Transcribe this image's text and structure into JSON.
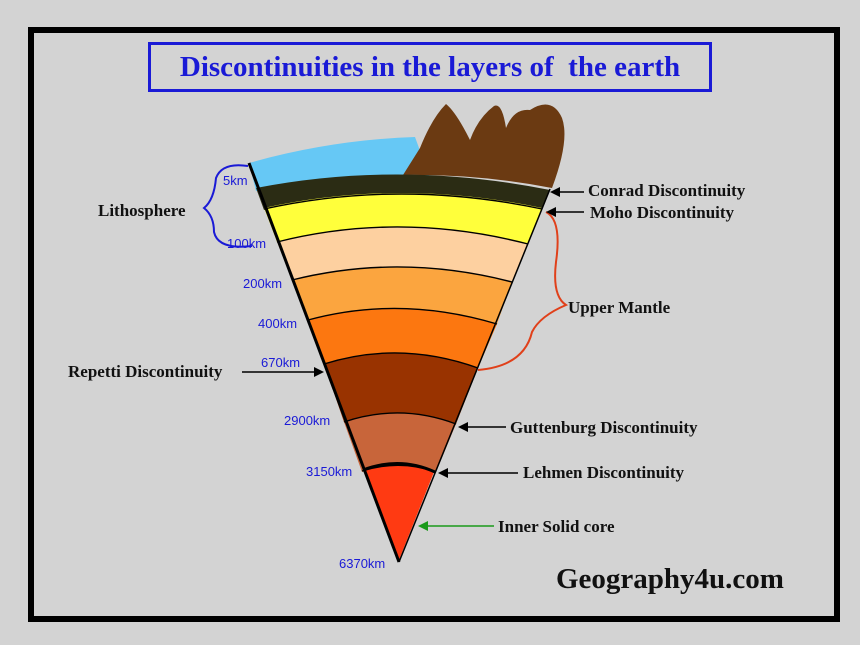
{
  "title": "Discontinuities in the layers of  the earth",
  "labels": {
    "lithosphere": "Lithosphere",
    "conrad": "Conrad Discontinuity",
    "moho": "Moho Discontinuity",
    "upper_mantle": "Upper Mantle",
    "repetti": "Repetti Discontinuity",
    "guttenburg": "Guttenburg Discontinuity",
    "lehmen": "Lehmen Discontinuity",
    "inner_core": "Inner Solid core"
  },
  "depths": {
    "d5": "5km",
    "d100": "100km",
    "d200": "200km",
    "d400": "400km",
    "d670": "670km",
    "d2900": "2900km",
    "d3150": "3150km",
    "d6370": "6370km"
  },
  "brand": "Geography4u.com",
  "colors": {
    "title": "#1a1ad6",
    "depth_text": "#1a1ad6",
    "bracket_blue": "#1a1ad6",
    "bracket_red": "#e0401a",
    "arrow_green": "#1a9a1a",
    "ocean": "#66c8f5",
    "continent": "#6b3a12",
    "crust": "#2b2c14",
    "layer_yellow": "#ffff3b",
    "layer_peach": "#fdd0a0",
    "layer_orange_light": "#fba53f",
    "layer_orange": "#fc7710",
    "layer_brown": "#993300",
    "layer_clay": "#c8653a",
    "core": "#ff3a12"
  }
}
